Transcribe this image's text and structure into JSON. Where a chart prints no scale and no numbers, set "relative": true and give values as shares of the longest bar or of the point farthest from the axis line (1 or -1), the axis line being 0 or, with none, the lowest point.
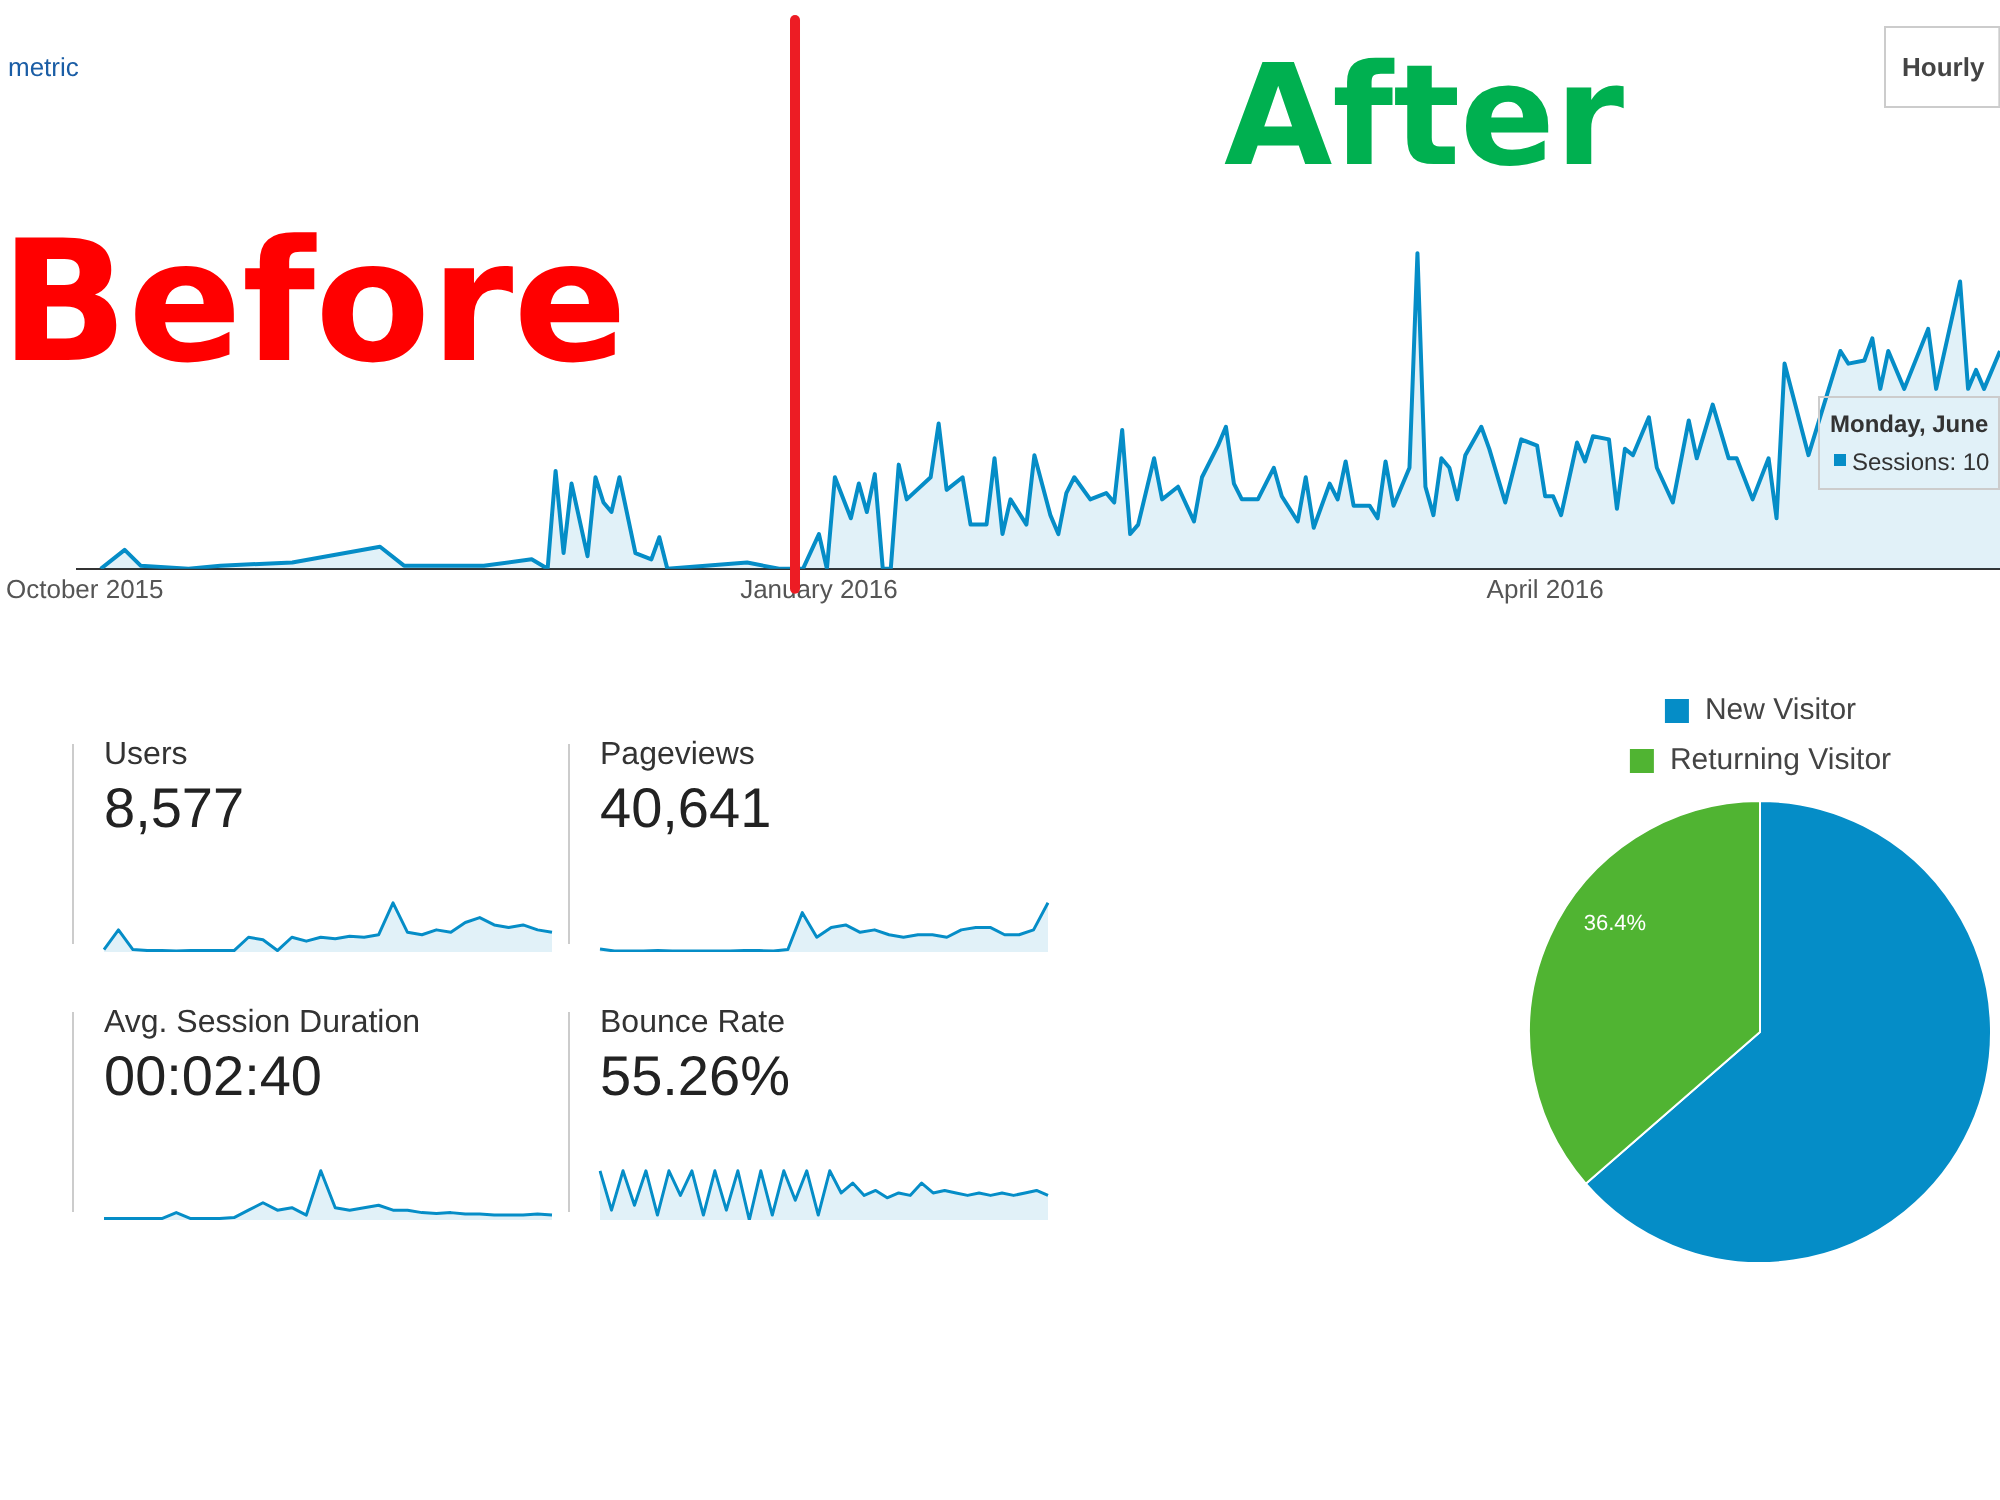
{
  "chart_data": [
    {
      "type": "area",
      "relative": true,
      "tick_labels": "x",
      "annotations": [
        "Before",
        "After",
        "metric",
        "Hourly",
        "Monday, June",
        "Sessions: 10"
      ],
      "xlim": [
        "2015-09-30",
        "2016-05-28"
      ],
      "xticks": [
        {
          "value": "2015-10-01",
          "label": "October 2015"
        },
        {
          "value": "2016-01-01",
          "label": "January 2016"
        },
        {
          "value": "2016-04-01",
          "label": "April 2016"
        }
      ],
      "ref_lines": [
        {
          "axis": "x",
          "value": "2015-12-29",
          "color": "#ed1c24"
        }
      ],
      "series": [
        {
          "color": "#058dc7",
          "x": [
            "2015-10-03",
            "2015-10-06",
            "2015-10-08",
            "2015-10-14",
            "2015-10-18",
            "2015-10-27",
            "2015-11-07",
            "2015-11-10",
            "2015-11-20",
            "2015-11-26",
            "2015-11-28",
            "2015-11-29",
            "2015-11-30",
            "2015-12-01",
            "2015-12-03",
            "2015-12-04",
            "2015-12-05",
            "2015-12-06",
            "2015-12-07",
            "2015-12-09",
            "2015-12-11",
            "2015-12-12",
            "2015-12-13",
            "2015-12-23",
            "2015-12-27",
            "2015-12-30",
            "2016-01-01",
            "2016-01-02",
            "2016-01-03",
            "2016-01-05",
            "2016-01-06",
            "2016-01-07",
            "2016-01-08",
            "2016-01-09",
            "2016-01-10",
            "2016-01-11",
            "2016-01-12",
            "2016-01-15",
            "2016-01-16",
            "2016-01-17",
            "2016-01-19",
            "2016-01-20",
            "2016-01-22",
            "2016-01-23",
            "2016-01-24",
            "2016-01-25",
            "2016-01-27",
            "2016-01-28",
            "2016-01-30",
            "2016-01-31",
            "2016-02-01",
            "2016-02-02",
            "2016-02-04",
            "2016-02-06",
            "2016-02-07",
            "2016-02-08",
            "2016-02-09",
            "2016-02-10",
            "2016-02-12",
            "2016-02-13",
            "2016-02-15",
            "2016-02-17",
            "2016-02-18",
            "2016-02-20",
            "2016-02-21",
            "2016-02-22",
            "2016-02-23",
            "2016-02-25",
            "2016-02-27",
            "2016-02-28",
            "2016-03-01",
            "2016-03-02",
            "2016-03-03",
            "2016-03-05",
            "2016-03-06",
            "2016-03-07",
            "2016-03-08",
            "2016-03-10",
            "2016-03-11",
            "2016-03-12",
            "2016-03-13",
            "2016-03-15",
            "2016-03-16",
            "2016-03-17",
            "2016-03-18",
            "2016-03-19",
            "2016-03-20",
            "2016-03-21",
            "2016-03-22",
            "2016-03-24",
            "2016-03-25",
            "2016-03-27",
            "2016-03-29",
            "2016-03-31",
            "2016-04-01",
            "2016-04-02",
            "2016-04-03",
            "2016-04-05",
            "2016-04-06",
            "2016-04-07",
            "2016-04-09",
            "2016-04-10",
            "2016-04-11",
            "2016-04-12",
            "2016-04-14",
            "2016-04-15",
            "2016-04-17",
            "2016-04-19",
            "2016-04-20",
            "2016-04-22",
            "2016-04-24",
            "2016-04-25",
            "2016-04-27",
            "2016-04-29",
            "2016-04-30",
            "2016-05-01",
            "2016-05-04",
            "2016-05-08",
            "2016-05-09",
            "2016-05-11",
            "2016-05-12",
            "2016-05-13",
            "2016-05-14",
            "2016-05-16",
            "2016-05-19",
            "2016-05-20",
            "2016-05-23",
            "2016-05-24",
            "2016-05-25",
            "2016-05-26",
            "2016-05-28"
          ],
          "values": [
            0,
            0.06,
            0.01,
            0,
            0.01,
            0.02,
            0.07,
            0.01,
            0.01,
            0.03,
            0,
            0.31,
            0.05,
            0.27,
            0.04,
            0.29,
            0.21,
            0.18,
            0.29,
            0.05,
            0.03,
            0.1,
            0,
            0.02,
            0,
            0,
            0.11,
            0,
            0.29,
            0.16,
            0.27,
            0.18,
            0.3,
            0,
            0,
            0.33,
            0.22,
            0.29,
            0.46,
            0.25,
            0.29,
            0.14,
            0.14,
            0.35,
            0.11,
            0.22,
            0.14,
            0.36,
            0.17,
            0.11,
            0.24,
            0.29,
            0.22,
            0.24,
            0.21,
            0.44,
            0.11,
            0.14,
            0.35,
            0.22,
            0.26,
            0.15,
            0.29,
            0.39,
            0.45,
            0.27,
            0.22,
            0.22,
            0.32,
            0.23,
            0.15,
            0.29,
            0.13,
            0.27,
            0.22,
            0.34,
            0.2,
            0.2,
            0.16,
            0.34,
            0.2,
            0.32,
            1,
            0.26,
            0.17,
            0.35,
            0.32,
            0.22,
            0.36,
            0.45,
            0.38,
            0.21,
            0.41,
            0.39,
            0.23,
            0.23,
            0.17,
            0.4,
            0.34,
            0.42,
            0.41,
            0.19,
            0.38,
            0.36,
            0.48,
            0.32,
            0.21,
            0.47,
            0.35,
            0.52,
            0.35,
            0.35,
            0.22,
            0.35,
            0.16,
            0.65,
            0.36,
            0.69,
            0.65,
            0.66,
            0.73,
            0.57,
            0.69,
            0.57,
            0.76,
            0.57,
            0.91,
            0.57,
            0.63,
            0.57,
            0.69
          ]
        }
      ]
    },
    {
      "type": "area",
      "relative": true,
      "tick_labels": false,
      "title": "Users",
      "subtitle": "8,577",
      "categories": [
        null,
        null,
        null,
        null,
        null,
        null,
        null,
        null,
        null,
        null,
        null,
        null,
        null,
        null,
        null,
        null,
        null,
        null,
        null,
        null,
        null,
        null,
        null,
        null,
        null,
        null,
        null,
        null,
        null,
        null,
        null,
        null
      ],
      "series": [
        {
          "color": "#058dc7",
          "values": [
            0.05,
            0.45,
            0.05,
            0.03,
            0.03,
            0.02,
            0.03,
            0.03,
            0.03,
            0.03,
            0.3,
            0.25,
            0.03,
            0.3,
            0.22,
            0.3,
            0.27,
            0.32,
            0.3,
            0.35,
            1,
            0.4,
            0.35,
            0.45,
            0.4,
            0.6,
            0.7,
            0.55,
            0.5,
            0.55,
            0.45,
            0.4
          ]
        }
      ]
    },
    {
      "type": "area",
      "relative": true,
      "tick_labels": false,
      "title": "Pageviews",
      "subtitle": "40,641",
      "categories": [
        null,
        null,
        null,
        null,
        null,
        null,
        null,
        null,
        null,
        null,
        null,
        null,
        null,
        null,
        null,
        null,
        null,
        null,
        null,
        null,
        null,
        null,
        null,
        null,
        null,
        null,
        null,
        null,
        null,
        null,
        null,
        null
      ],
      "series": [
        {
          "color": "#058dc7",
          "values": [
            0.06,
            0.02,
            0.02,
            0.02,
            0.03,
            0.02,
            0.02,
            0.02,
            0.02,
            0.02,
            0.03,
            0.03,
            0.02,
            0.05,
            0.8,
            0.3,
            0.5,
            0.55,
            0.4,
            0.45,
            0.35,
            0.3,
            0.35,
            0.35,
            0.3,
            0.45,
            0.5,
            0.5,
            0.35,
            0.35,
            0.45,
            1
          ]
        }
      ]
    },
    {
      "type": "area",
      "relative": true,
      "tick_labels": false,
      "title": "Avg. Session Duration",
      "subtitle": "00:02:40",
      "categories": [
        null,
        null,
        null,
        null,
        null,
        null,
        null,
        null,
        null,
        null,
        null,
        null,
        null,
        null,
        null,
        null,
        null,
        null,
        null,
        null,
        null,
        null,
        null,
        null,
        null,
        null,
        null,
        null,
        null,
        null,
        null,
        null
      ],
      "series": [
        {
          "color": "#058dc7",
          "values": [
            0.03,
            0.03,
            0.03,
            0.03,
            0.03,
            0.15,
            0.03,
            0.03,
            0.03,
            0.05,
            0.2,
            0.35,
            0.2,
            0.25,
            0.1,
            1,
            0.25,
            0.2,
            0.25,
            0.3,
            0.2,
            0.2,
            0.15,
            0.13,
            0.15,
            0.12,
            0.12,
            0.1,
            0.1,
            0.1,
            0.12,
            0.1
          ]
        }
      ]
    },
    {
      "type": "area",
      "relative": true,
      "tick_labels": false,
      "title": "Bounce Rate",
      "subtitle": "55.26%",
      "categories": [
        null,
        null,
        null,
        null,
        null,
        null,
        null,
        null,
        null,
        null,
        null,
        null,
        null,
        null,
        null,
        null,
        null,
        null,
        null,
        null,
        null,
        null,
        null,
        null,
        null,
        null,
        null,
        null,
        null,
        null,
        null,
        null,
        null,
        null,
        null,
        null,
        null,
        null,
        null,
        null
      ],
      "series": [
        {
          "color": "#058dc7",
          "values": [
            1,
            0.2,
            1,
            0.3,
            1,
            0.1,
            1,
            0.5,
            1,
            0.1,
            1,
            0.2,
            1,
            0,
            1,
            0.1,
            1,
            0.4,
            1,
            0.1,
            1,
            0.55,
            0.75,
            0.5,
            0.6,
            0.45,
            0.55,
            0.5,
            0.75,
            0.55,
            0.6,
            0.55,
            0.5,
            0.55,
            0.5,
            0.55,
            0.5,
            0.55,
            0.6,
            0.5
          ]
        }
      ]
    },
    {
      "type": "pie",
      "legend": "top",
      "categories": [
        "New Visitor",
        "Returning Visitor"
      ],
      "values": [
        63.6,
        36.4
      ],
      "colors": [
        "#058dc7",
        "#50b432"
      ],
      "value_labels": [
        null,
        "36.4%"
      ]
    }
  ]
}
